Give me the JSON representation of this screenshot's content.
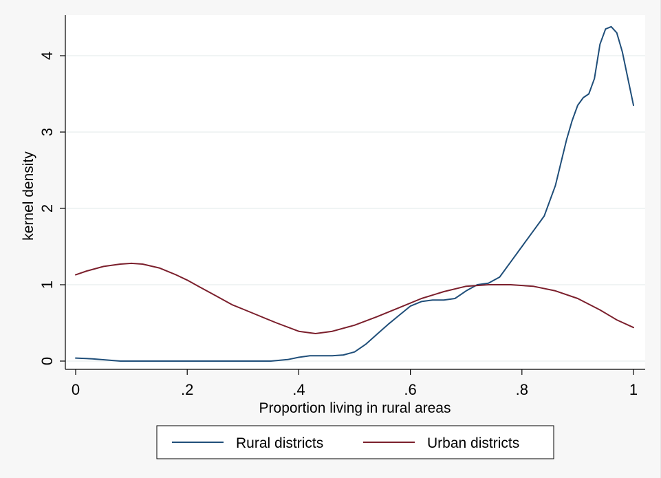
{
  "chart_data": {
    "type": "line",
    "title": "",
    "xlabel": "Proportion living in rural areas",
    "ylabel": "kernel density",
    "xlim": [
      0,
      1
    ],
    "ylim": [
      0,
      4.5
    ],
    "x_ticks": [
      {
        "value": 0,
        "label": "0"
      },
      {
        "value": 0.2,
        "label": ".2"
      },
      {
        "value": 0.4,
        "label": ".4"
      },
      {
        "value": 0.6,
        "label": ".6"
      },
      {
        "value": 0.8,
        "label": ".8"
      },
      {
        "value": 1,
        "label": "1"
      }
    ],
    "y_ticks": [
      {
        "value": 0,
        "label": "0"
      },
      {
        "value": 1,
        "label": "1"
      },
      {
        "value": 2,
        "label": "2"
      },
      {
        "value": 3,
        "label": "3"
      },
      {
        "value": 4,
        "label": "4"
      }
    ],
    "grid": true,
    "legend_position": "bottom",
    "series": [
      {
        "name": "Rural districts",
        "color": "#1f4e79",
        "x": [
          0,
          0.03,
          0.08,
          0.15,
          0.2,
          0.25,
          0.3,
          0.35,
          0.38,
          0.4,
          0.42,
          0.44,
          0.46,
          0.48,
          0.5,
          0.52,
          0.54,
          0.56,
          0.58,
          0.6,
          0.62,
          0.64,
          0.66,
          0.68,
          0.7,
          0.72,
          0.74,
          0.76,
          0.78,
          0.8,
          0.82,
          0.84,
          0.86,
          0.87,
          0.88,
          0.89,
          0.9,
          0.91,
          0.92,
          0.93,
          0.94,
          0.95,
          0.96,
          0.97,
          0.98,
          0.99,
          1.0
        ],
        "y": [
          0.04,
          0.03,
          0.0,
          0.0,
          0.0,
          0.0,
          0.0,
          0.0,
          0.02,
          0.05,
          0.07,
          0.07,
          0.07,
          0.08,
          0.12,
          0.22,
          0.35,
          0.48,
          0.6,
          0.72,
          0.78,
          0.8,
          0.8,
          0.82,
          0.92,
          1.0,
          1.02,
          1.1,
          1.3,
          1.5,
          1.7,
          1.9,
          2.3,
          2.6,
          2.9,
          3.15,
          3.35,
          3.45,
          3.5,
          3.7,
          4.15,
          4.35,
          4.38,
          4.3,
          4.05,
          3.7,
          3.35
        ]
      },
      {
        "name": "Urban districts",
        "color": "#7b1f2c",
        "x": [
          0,
          0.02,
          0.05,
          0.08,
          0.1,
          0.12,
          0.15,
          0.18,
          0.2,
          0.22,
          0.25,
          0.28,
          0.3,
          0.33,
          0.36,
          0.4,
          0.43,
          0.46,
          0.5,
          0.54,
          0.58,
          0.62,
          0.66,
          0.7,
          0.74,
          0.78,
          0.82,
          0.86,
          0.9,
          0.94,
          0.97,
          1.0
        ],
        "y": [
          1.13,
          1.18,
          1.24,
          1.27,
          1.28,
          1.27,
          1.22,
          1.13,
          1.06,
          0.98,
          0.86,
          0.74,
          0.68,
          0.59,
          0.5,
          0.39,
          0.36,
          0.39,
          0.47,
          0.58,
          0.7,
          0.82,
          0.91,
          0.98,
          1.0,
          1.0,
          0.98,
          0.92,
          0.82,
          0.67,
          0.54,
          0.44
        ]
      }
    ]
  }
}
